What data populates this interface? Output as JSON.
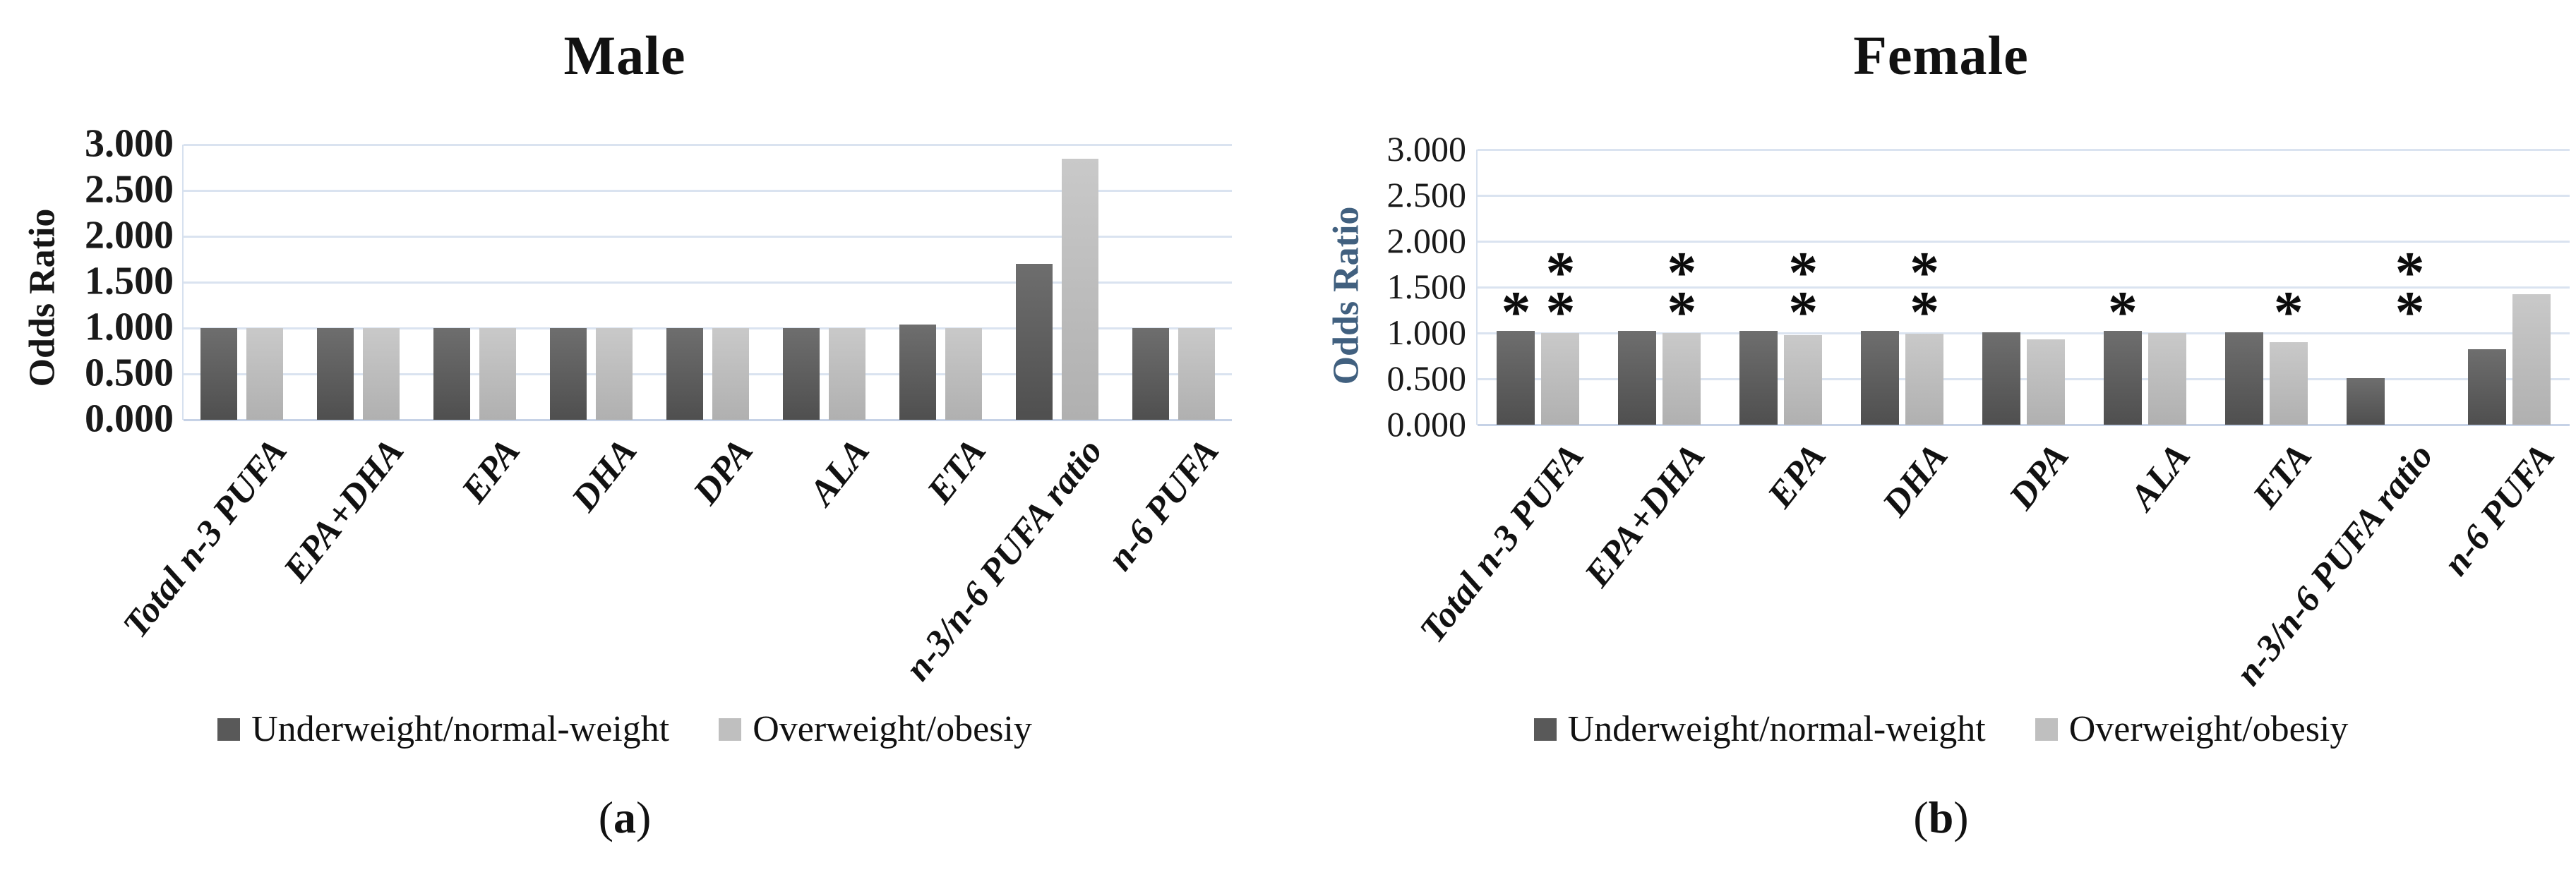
{
  "figure": {
    "captions": [
      {
        "prefix": "(",
        "letter": "a",
        "suffix": ")"
      },
      {
        "prefix": "(",
        "letter": "b",
        "suffix": ")"
      }
    ]
  },
  "chart_data": [
    {
      "type": "bar",
      "title": "Male",
      "ylabel": "Odds Ratio",
      "ylabel_color": "#161616",
      "xlabel": "",
      "categories": [
        "Total n-3 PUFA",
        "EPA+DHA",
        "EPA",
        "DHA",
        "DPA",
        "ALA",
        "ETA",
        "n-3/n-6 PUFA ratio",
        "n-6 PUFA"
      ],
      "ylim": [
        0,
        3
      ],
      "yticks": [
        {
          "value": 3.0,
          "label": "3.000"
        },
        {
          "value": 2.5,
          "label": "2.500"
        },
        {
          "value": 2.0,
          "label": "2.000"
        },
        {
          "value": 1.5,
          "label": "1.500"
        },
        {
          "value": 1.0,
          "label": "1.000"
        },
        {
          "value": 0.5,
          "label": "0.500"
        },
        {
          "value": 0.0,
          "label": "0.000"
        }
      ],
      "grid": true,
      "grid_color": "#dae3f0",
      "legend_position": "bottom",
      "series": [
        {
          "name": "Underweight/normal-weight",
          "color": "#595959",
          "values": [
            1.0,
            1.0,
            1.0,
            1.0,
            1.0,
            1.0,
            1.04,
            1.7,
            1.0
          ],
          "annotations": [
            "",
            "",
            "",
            "",
            "",
            "",
            "",
            "",
            ""
          ]
        },
        {
          "name": "Overweight/obesiy",
          "color": "#bfbfbf",
          "values": [
            1.0,
            1.0,
            1.0,
            1.0,
            1.0,
            1.0,
            1.0,
            2.85,
            1.0
          ],
          "annotations": [
            "",
            "",
            "",
            "",
            "",
            "",
            "",
            "",
            ""
          ]
        }
      ]
    },
    {
      "type": "bar",
      "title": "Female",
      "ylabel": "Odds Ratio",
      "ylabel_color": "#41607f",
      "xlabel": "",
      "categories": [
        "Total n-3 PUFA",
        "EPA+DHA",
        "EPA",
        "DHA",
        "DPA",
        "ALA",
        "ETA",
        "n-3/n-6 PUFA ratio",
        "n-6 PUFA"
      ],
      "ylim": [
        0,
        3
      ],
      "yticks": [
        {
          "value": 3.0,
          "label": "3.000"
        },
        {
          "value": 2.5,
          "label": "2.500"
        },
        {
          "value": 2.0,
          "label": "2.000"
        },
        {
          "value": 1.5,
          "label": "1.500"
        },
        {
          "value": 1.0,
          "label": "1.000"
        },
        {
          "value": 0.5,
          "label": "0.500"
        },
        {
          "value": 0.0,
          "label": "0.000"
        }
      ],
      "grid": true,
      "grid_color": "#dae3f0",
      "legend_position": "bottom",
      "series": [
        {
          "name": "Underweight/normal-weight",
          "color": "#595959",
          "values": [
            1.02,
            1.02,
            1.02,
            1.02,
            1.01,
            1.02,
            1.01,
            0.51,
            0.82
          ],
          "annotations": [
            "*",
            "",
            "",
            "",
            "",
            "*",
            "",
            "",
            ""
          ]
        },
        {
          "name": "Overweight/obesiy",
          "color": "#bfbfbf",
          "values": [
            1.0,
            1.0,
            0.98,
            0.99,
            0.93,
            1.0,
            0.9,
            0.0,
            1.42
          ],
          "annotations": [
            "**",
            "**",
            "**",
            "**",
            "",
            "",
            "*",
            "**",
            ""
          ]
        }
      ]
    }
  ]
}
